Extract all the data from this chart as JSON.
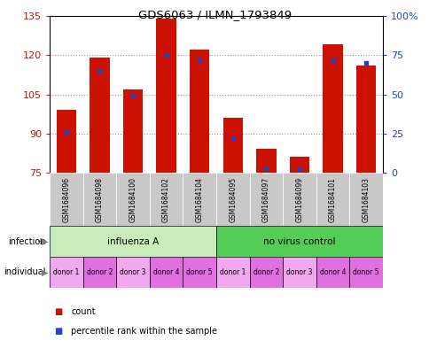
{
  "title": "GDS6063 / ILMN_1793849",
  "samples": [
    "GSM1684096",
    "GSM1684098",
    "GSM1684100",
    "GSM1684102",
    "GSM1684104",
    "GSM1684095",
    "GSM1684097",
    "GSM1684099",
    "GSM1684101",
    "GSM1684103"
  ],
  "count_values": [
    99,
    119,
    107,
    134,
    122,
    96,
    84,
    81,
    124,
    116
  ],
  "percentile_values": [
    26,
    65,
    49,
    75,
    72,
    22,
    3,
    2,
    72,
    70
  ],
  "y_min": 75,
  "y_max": 135,
  "y_ticks": [
    75,
    90,
    105,
    120,
    135
  ],
  "y_right_ticks": [
    0,
    25,
    50,
    75,
    100
  ],
  "infection_groups": [
    {
      "label": "influenza A",
      "start": 0,
      "end": 5,
      "color": "#c8edba"
    },
    {
      "label": "no virus control",
      "start": 5,
      "end": 10,
      "color": "#55cc55"
    }
  ],
  "individual_labels": [
    "donor 1",
    "donor 2",
    "donor 3",
    "donor 4",
    "donor 5",
    "donor 1",
    "donor 2",
    "donor 3",
    "donor 4",
    "donor 5"
  ],
  "ind_color1": "#f0a8f0",
  "ind_color2": "#e070e0",
  "bar_color": "#cc1100",
  "blue_marker_color": "#2244cc",
  "grid_color": "#999999",
  "axis_color_left": "#cc1100",
  "axis_color_right": "#2244cc",
  "sample_bg_color": "#c8c8c8",
  "chart_border_color": "#000000"
}
